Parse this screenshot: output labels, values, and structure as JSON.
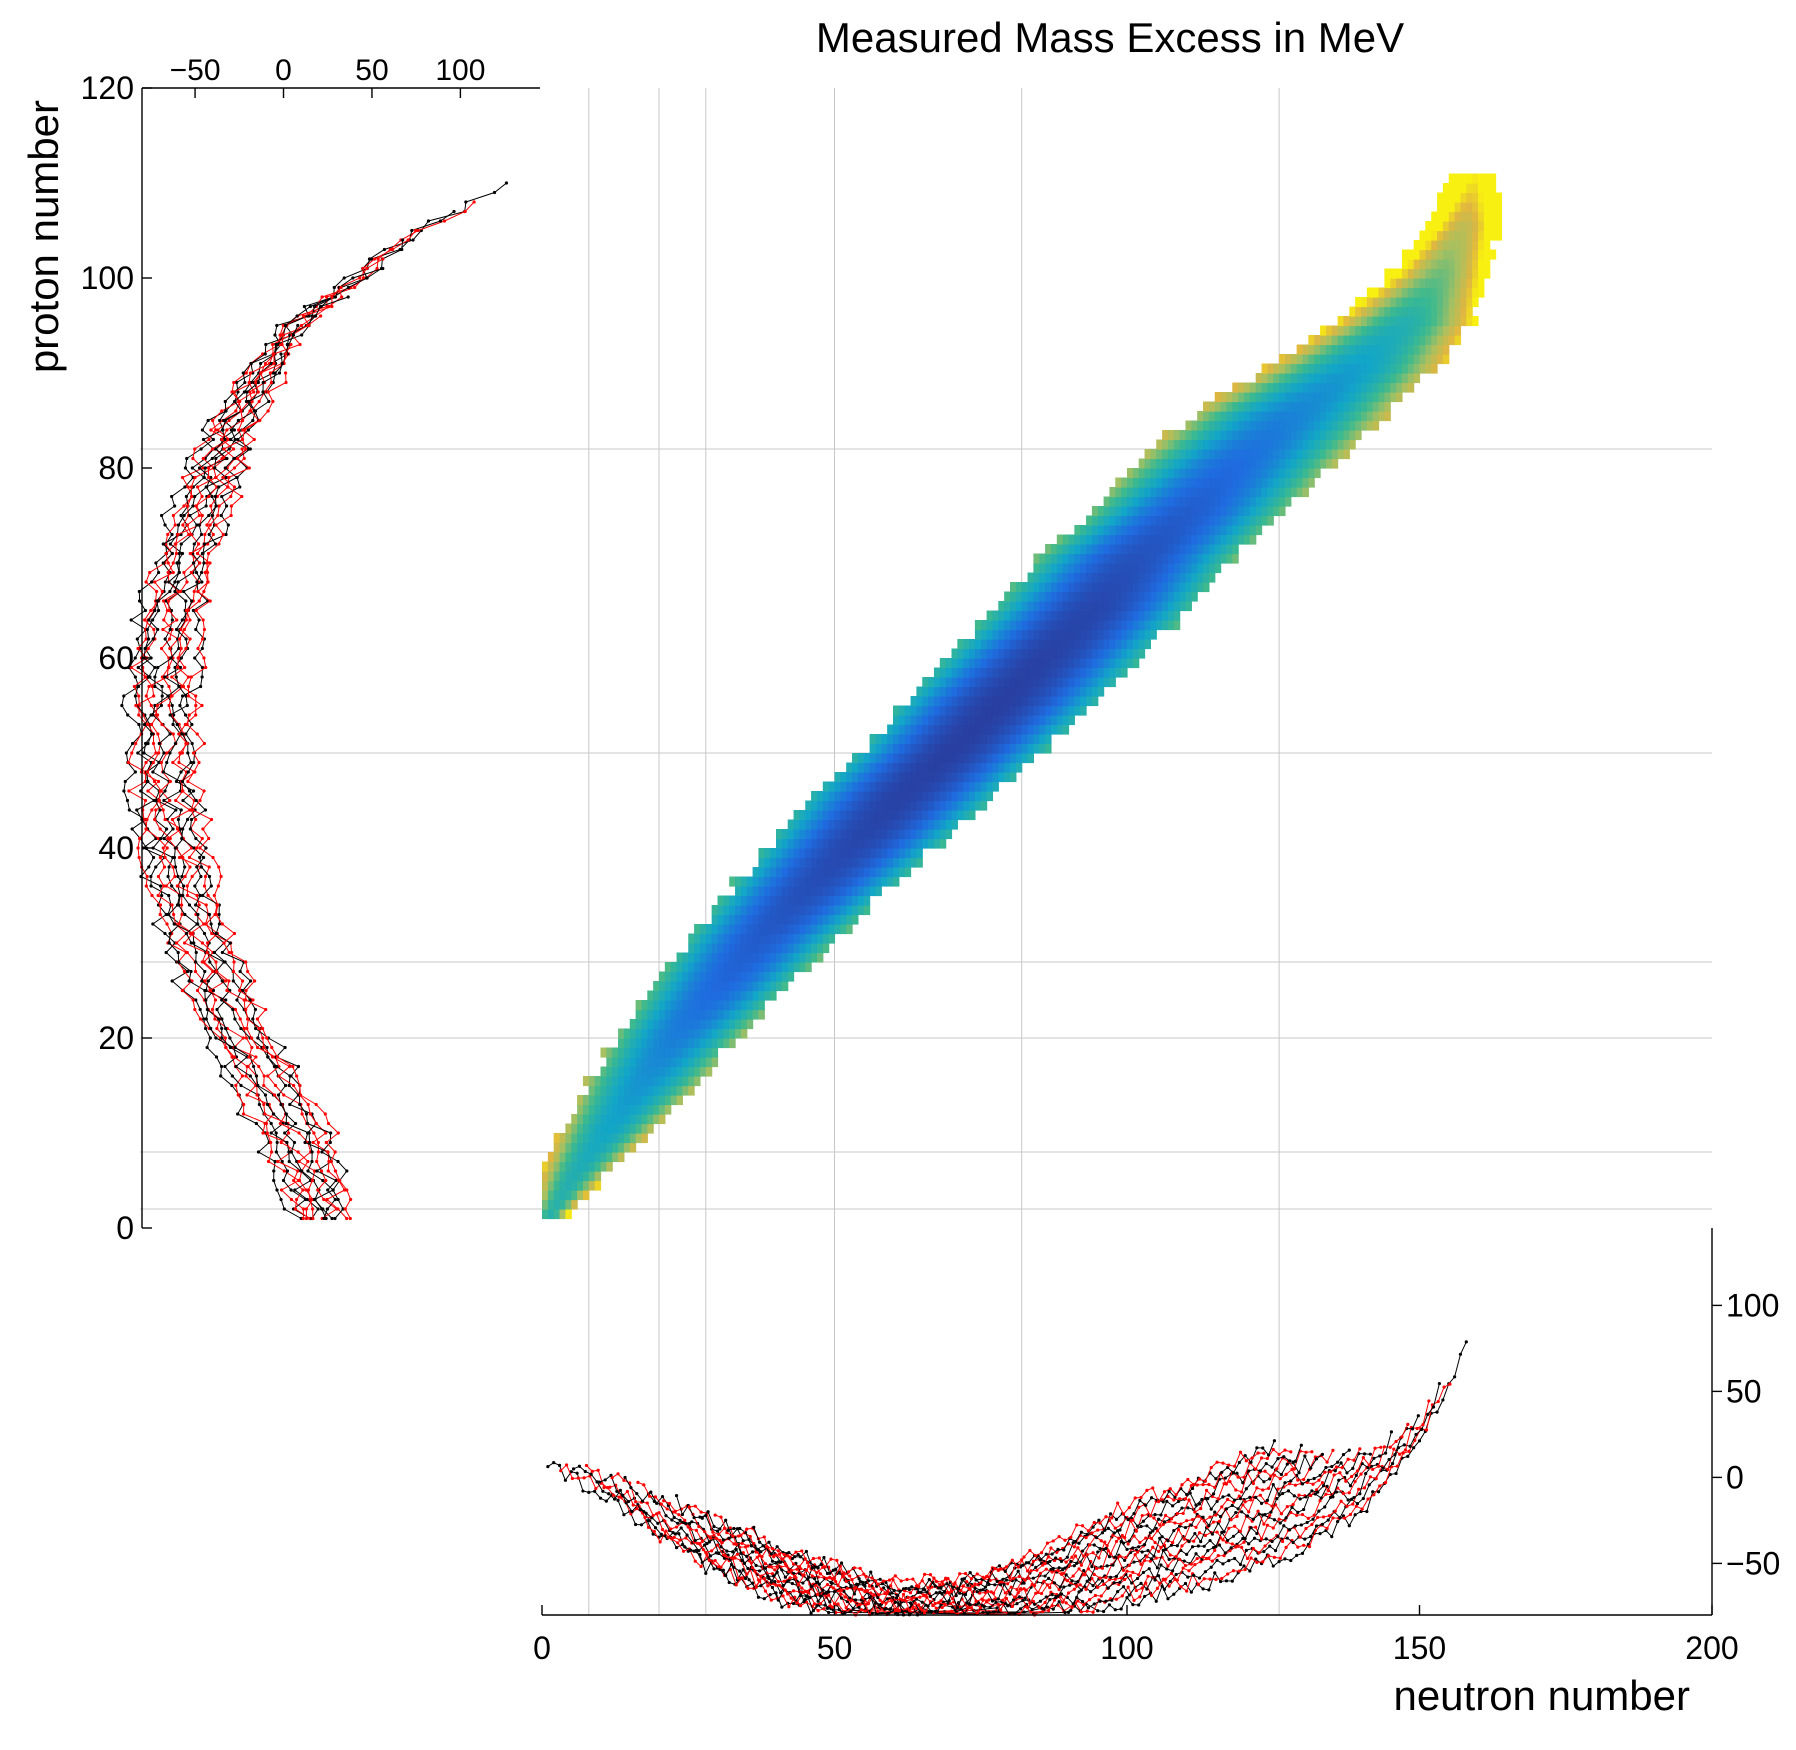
{
  "chart_data": [
    {
      "type": "heatmap",
      "title": "Measured Mass Excess in MeV",
      "xlabel": "neutron number",
      "ylabel": "proton number",
      "xlim": [
        0,
        200
      ],
      "ylim": [
        0,
        120
      ],
      "x_ticks": [
        0,
        50,
        100,
        150,
        200
      ],
      "y_ticks": [
        0,
        20,
        40,
        60,
        80,
        100,
        120
      ],
      "grid": true,
      "grid_lines_x": [
        8,
        20,
        28,
        50,
        82,
        126
      ],
      "grid_lines_y": [
        2,
        8,
        20,
        28,
        50,
        82
      ],
      "colormap": [
        "#2a3a9a",
        "#1f6be0",
        "#12a6c8",
        "#3bb98f",
        "#a8c060",
        "#e0b640",
        "#f8f010"
      ],
      "color_range_mev": [
        -90,
        135
      ],
      "valley_band": {
        "Z": [
          1,
          5,
          10,
          15,
          20,
          25,
          30,
          35,
          40,
          45,
          50,
          55,
          60,
          65,
          70,
          75,
          80,
          85,
          90,
          95,
          100,
          105,
          110
        ],
        "N_center": [
          1,
          5,
          11,
          17,
          23,
          30,
          37,
          45,
          53,
          61,
          70,
          78,
          86,
          94,
          101,
          110,
          118,
          127,
          138,
          147,
          153,
          157,
          159
        ],
        "N_halfwidth": [
          2,
          4,
          6,
          8,
          9,
          10,
          11,
          12,
          13,
          14,
          14,
          15,
          15,
          15,
          15,
          15,
          15,
          15,
          13,
          10,
          7,
          5,
          3
        ]
      }
    },
    {
      "type": "line",
      "description_axis": "mass excess projected against proton number",
      "x_ticks": [
        -50,
        0,
        50,
        100
      ],
      "xlim": [
        -80,
        145
      ],
      "ylim": [
        0,
        120
      ],
      "series_colors": [
        "#000000",
        "#ff0000"
      ],
      "ridge": {
        "Z": [
          2,
          5,
          10,
          15,
          20,
          25,
          30,
          35,
          40,
          45,
          50,
          55,
          60,
          65,
          70,
          75,
          80,
          85,
          90,
          95,
          100,
          105,
          110
        ],
        "mass_excess_min": [
          5,
          0,
          -15,
          -28,
          -42,
          -55,
          -65,
          -74,
          -80,
          -84,
          -86,
          -86,
          -84,
          -80,
          -72,
          -63,
          -52,
          -38,
          -20,
          2,
          40,
          75,
          130
        ],
        "spread": [
          30,
          35,
          40,
          40,
          38,
          36,
          36,
          36,
          36,
          36,
          36,
          36,
          36,
          34,
          32,
          30,
          28,
          24,
          18,
          14,
          10,
          8,
          4
        ]
      }
    },
    {
      "type": "line",
      "description_axis": "mass excess projected against neutron number",
      "y_ticks": [
        -50,
        0,
        50,
        100
      ],
      "ylim": [
        -80,
        145
      ],
      "xlim": [
        0,
        200
      ],
      "series_colors": [
        "#000000",
        "#ff0000"
      ],
      "ridge": {
        "N": [
          1,
          5,
          10,
          15,
          20,
          30,
          40,
          50,
          60,
          70,
          80,
          90,
          100,
          110,
          120,
          130,
          140,
          150,
          158
        ],
        "mass_excess_min": [
          5,
          0,
          -10,
          -22,
          -35,
          -55,
          -70,
          -80,
          -86,
          -88,
          -86,
          -80,
          -72,
          -65,
          -55,
          -42,
          -20,
          20,
          75
        ],
        "spread": [
          35,
          45,
          50,
          50,
          48,
          40,
          30,
          28,
          25,
          28,
          35,
          45,
          55,
          62,
          68,
          70,
          65,
          55,
          50
        ]
      }
    }
  ]
}
